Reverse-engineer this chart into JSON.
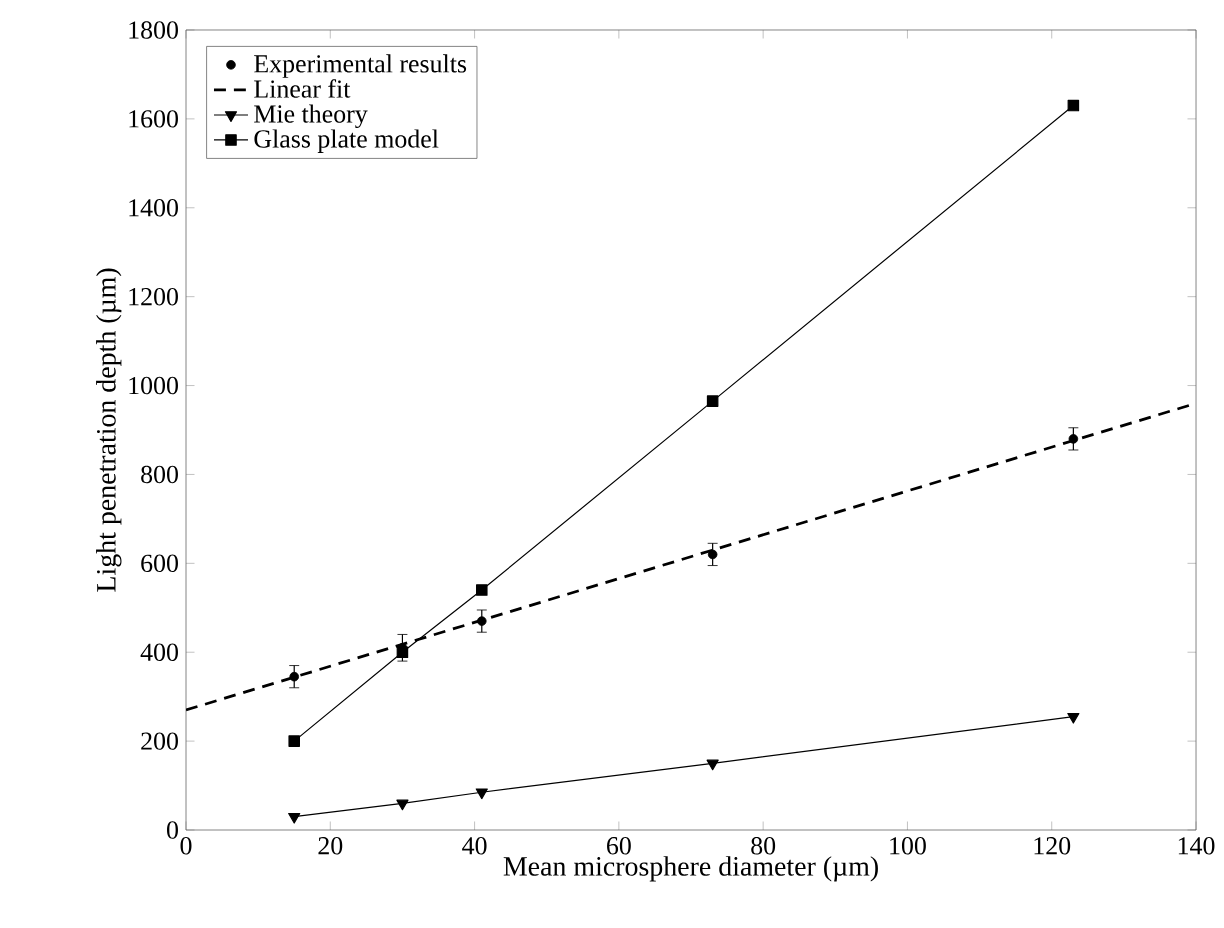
{
  "chart_data": {
    "type": "line",
    "xlabel": "Mean microsphere diameter (µm)",
    "ylabel": "Light penetration depth (µm)",
    "xlim": [
      0,
      140
    ],
    "xticks": [
      0,
      20,
      40,
      60,
      80,
      100,
      120,
      140
    ],
    "ylim": [
      0,
      1800
    ],
    "yticks": [
      0,
      200,
      400,
      600,
      800,
      1000,
      1200,
      1400,
      1600,
      1800
    ],
    "legend": "top left",
    "grid": false,
    "series": [
      {
        "name": "Experimental results",
        "type": "scatter",
        "marker": "circle",
        "color": "#000000",
        "x": [
          15,
          30,
          41,
          73,
          123
        ],
        "values": [
          345,
          410,
          470,
          620,
          880
        ],
        "errors": [
          25,
          30,
          25,
          25,
          25
        ]
      },
      {
        "name": "Linear fit",
        "marker": "none",
        "line_style": "dashed",
        "color": "#000000",
        "x": [
          0,
          140
        ],
        "values": [
          270,
          960
        ]
      },
      {
        "name": "Mie theory",
        "marker": "triangle",
        "line_style": "solid",
        "color": "#000000",
        "x": [
          15,
          30,
          41,
          73,
          123
        ],
        "values": [
          30,
          60,
          85,
          150,
          255
        ]
      },
      {
        "name": "Glass plate model",
        "marker": "square",
        "line_style": "solid",
        "color": "#000000",
        "x": [
          15,
          30,
          41,
          73,
          123
        ],
        "values": [
          200,
          400,
          540,
          965,
          1630
        ]
      }
    ]
  }
}
